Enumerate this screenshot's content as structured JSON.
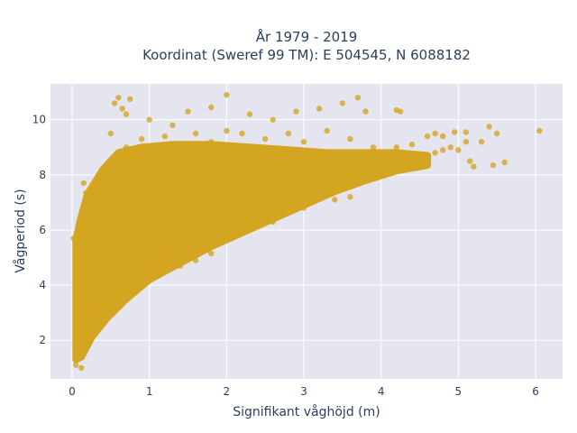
{
  "chart_data": {
    "type": "scatter",
    "title": [
      "År 1979 - 2019",
      "Koordinat (Sweref 99 TM): E 504545, N 6088182"
    ],
    "xlabel": "Signifikant våghöjd (m)",
    "ylabel": "Vågperiod (s)",
    "xlim": [
      -0.28,
      6.35
    ],
    "ylim": [
      0.6,
      11.3
    ],
    "xticks": [
      0,
      1,
      2,
      3,
      4,
      5,
      6
    ],
    "xtick_labels": [
      "0",
      "1",
      "2",
      "3",
      "4",
      "5",
      "6"
    ],
    "yticks": [
      2,
      4,
      6,
      8,
      10
    ],
    "ytick_labels": [
      "2",
      "4",
      "6",
      "8",
      "10"
    ],
    "grid": true,
    "legend": "none",
    "background_color": "#e5e5f0",
    "marker_color": "#d4a520",
    "series": [
      {
        "points": [
          [
            0.05,
            1.1
          ],
          [
            0.1,
            1.4
          ],
          [
            0.12,
            1.0
          ],
          [
            0.08,
            1.7
          ],
          [
            0.15,
            1.9
          ],
          [
            0.2,
            2.3
          ],
          [
            0.1,
            2.6
          ],
          [
            0.05,
            3.2
          ],
          [
            0.08,
            3.5
          ],
          [
            0.12,
            4.0
          ],
          [
            0.18,
            4.8
          ],
          [
            0.1,
            5.8
          ],
          [
            0.02,
            5.7
          ],
          [
            0.2,
            5.4
          ],
          [
            0.25,
            3.0
          ],
          [
            0.3,
            2.6
          ],
          [
            0.35,
            3.3
          ],
          [
            0.4,
            2.9
          ],
          [
            0.45,
            4.2
          ],
          [
            0.5,
            3.6
          ],
          [
            0.55,
            6.3
          ],
          [
            0.6,
            7.4
          ],
          [
            0.4,
            6.0
          ],
          [
            0.3,
            5.0
          ],
          [
            0.7,
            5.1
          ],
          [
            0.8,
            3.7
          ],
          [
            0.9,
            4.2
          ],
          [
            1.0,
            4.5
          ],
          [
            1.1,
            4.9
          ],
          [
            1.2,
            5.1
          ],
          [
            1.3,
            5.2
          ],
          [
            1.5,
            5.5
          ],
          [
            1.7,
            5.7
          ],
          [
            1.9,
            6.0
          ],
          [
            2.1,
            6.3
          ],
          [
            2.3,
            6.6
          ],
          [
            2.5,
            6.8
          ],
          [
            2.7,
            7.0
          ],
          [
            2.9,
            7.2
          ],
          [
            3.1,
            7.4
          ],
          [
            3.3,
            7.5
          ],
          [
            3.5,
            7.7
          ],
          [
            3.7,
            7.9
          ],
          [
            3.9,
            8.0
          ],
          [
            4.1,
            8.2
          ],
          [
            4.3,
            8.4
          ],
          [
            4.5,
            8.6
          ],
          [
            4.7,
            8.8
          ],
          [
            4.9,
            9.0
          ],
          [
            5.1,
            9.2
          ],
          [
            0.6,
            8.2
          ],
          [
            0.7,
            9.0
          ],
          [
            0.8,
            8.6
          ],
          [
            0.9,
            9.3
          ],
          [
            1.0,
            8.9
          ],
          [
            1.2,
            9.4
          ],
          [
            1.4,
            9.1
          ],
          [
            1.6,
            9.5
          ],
          [
            1.8,
            9.2
          ],
          [
            2.0,
            9.6
          ],
          [
            0.5,
            9.5
          ],
          [
            0.55,
            10.6
          ],
          [
            0.6,
            10.8
          ],
          [
            0.65,
            10.4
          ],
          [
            0.75,
            10.75
          ],
          [
            0.7,
            10.2
          ],
          [
            1.5,
            10.3
          ],
          [
            1.8,
            10.45
          ],
          [
            2.0,
            10.9
          ],
          [
            2.3,
            10.2
          ],
          [
            2.6,
            10.0
          ],
          [
            2.9,
            10.3
          ],
          [
            3.2,
            10.4
          ],
          [
            3.5,
            10.6
          ],
          [
            3.7,
            10.8
          ],
          [
            3.8,
            10.3
          ],
          [
            4.2,
            10.35
          ],
          [
            4.25,
            10.3
          ],
          [
            1.0,
            10.0
          ],
          [
            1.3,
            9.8
          ],
          [
            2.2,
            9.5
          ],
          [
            2.5,
            9.3
          ],
          [
            2.8,
            9.5
          ],
          [
            3.0,
            9.2
          ],
          [
            3.3,
            9.6
          ],
          [
            3.6,
            9.3
          ],
          [
            3.9,
            9.0
          ],
          [
            4.2,
            9.0
          ],
          [
            4.4,
            9.1
          ],
          [
            4.6,
            9.4
          ],
          [
            4.7,
            9.5
          ],
          [
            4.8,
            9.4
          ],
          [
            4.95,
            9.55
          ],
          [
            5.0,
            8.9
          ],
          [
            5.1,
            9.55
          ],
          [
            5.15,
            8.5
          ],
          [
            5.2,
            8.3
          ],
          [
            5.3,
            9.2
          ],
          [
            5.4,
            9.75
          ],
          [
            5.45,
            8.35
          ],
          [
            5.5,
            9.5
          ],
          [
            5.6,
            8.45
          ],
          [
            6.05,
            9.6
          ],
          [
            4.3,
            8.6
          ],
          [
            4.5,
            8.3
          ],
          [
            4.6,
            8.7
          ],
          [
            4.8,
            8.9
          ],
          [
            1.5,
            5.1
          ],
          [
            1.8,
            5.15
          ],
          [
            0.15,
            7.7
          ],
          [
            0.18,
            7.35
          ],
          [
            0.22,
            7.2
          ],
          [
            0.25,
            6.7
          ],
          [
            1.4,
            4.7
          ],
          [
            1.6,
            4.9
          ],
          [
            2.2,
            5.9
          ],
          [
            2.6,
            6.3
          ],
          [
            3.0,
            6.8
          ],
          [
            3.4,
            7.1
          ],
          [
            3.6,
            7.2
          ]
        ]
      }
    ],
    "bands": [
      {
        "upper": [
          [
            0.05,
            5.6
          ],
          [
            0.1,
            6.3
          ],
          [
            0.2,
            7.3
          ],
          [
            0.4,
            8.2
          ],
          [
            0.6,
            8.8
          ],
          [
            0.9,
            9.0
          ],
          [
            1.3,
            9.1
          ],
          [
            1.8,
            9.1
          ],
          [
            2.3,
            9.0
          ],
          [
            2.8,
            8.9
          ],
          [
            3.3,
            8.8
          ],
          [
            3.8,
            8.8
          ],
          [
            4.2,
            8.8
          ],
          [
            4.6,
            8.7
          ]
        ],
        "lower": [
          [
            4.6,
            8.35
          ],
          [
            4.2,
            8.15
          ],
          [
            3.8,
            7.8
          ],
          [
            3.4,
            7.4
          ],
          [
            3.0,
            6.9
          ],
          [
            2.6,
            6.4
          ],
          [
            2.2,
            5.9
          ],
          [
            1.8,
            5.4
          ],
          [
            1.4,
            4.8
          ],
          [
            1.0,
            4.2
          ],
          [
            0.7,
            3.5
          ],
          [
            0.45,
            2.8
          ],
          [
            0.25,
            2.1
          ],
          [
            0.12,
            1.4
          ],
          [
            0.05,
            1.3
          ]
        ]
      }
    ]
  }
}
